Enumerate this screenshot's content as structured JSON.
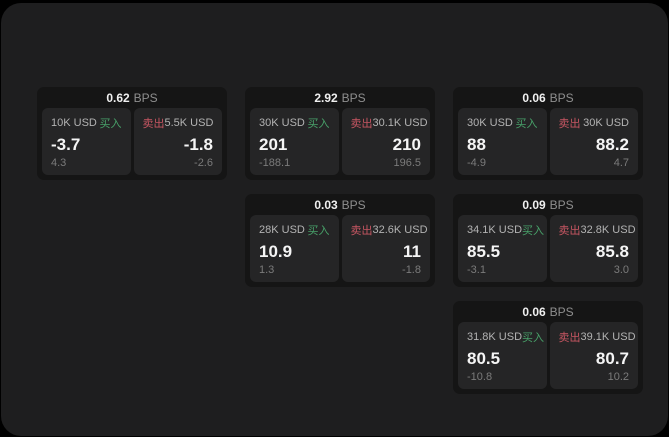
{
  "labels": {
    "bps_unit": "BPS",
    "buy": "买入",
    "sell": "卖出"
  },
  "colors": {
    "page_background": "#1e1e1f",
    "card_background": "#151515",
    "tile_background": "#252526",
    "buy_accent": "#48a169",
    "sell_accent": "#c75662"
  },
  "cards": [
    {
      "bps": "0.62",
      "col": "1",
      "row": "1",
      "buy": {
        "amount": "10K USD",
        "value": "-3.7",
        "sub": "4.3"
      },
      "sell": {
        "amount": "5.5K USD",
        "value": "-1.8",
        "sub": "-2.6"
      }
    },
    {
      "bps": "2.92",
      "col": "2",
      "row": "1",
      "buy": {
        "amount": "30K USD",
        "value": "201",
        "sub": "-188.1"
      },
      "sell": {
        "amount": "30.1K USD",
        "value": "210",
        "sub": "196.5"
      }
    },
    {
      "bps": "0.06",
      "col": "3",
      "row": "1",
      "buy": {
        "amount": "30K USD",
        "value": "88",
        "sub": "-4.9"
      },
      "sell": {
        "amount": "30K USD",
        "value": "88.2",
        "sub": "4.7"
      }
    },
    {
      "bps": "0.03",
      "col": "2",
      "row": "2",
      "buy": {
        "amount": "28K USD",
        "value": "10.9",
        "sub": "1.3"
      },
      "sell": {
        "amount": "32.6K USD",
        "value": "11",
        "sub": "-1.8"
      }
    },
    {
      "bps": "0.09",
      "col": "3",
      "row": "2",
      "buy": {
        "amount": "34.1K USD",
        "value": "85.5",
        "sub": "-3.1"
      },
      "sell": {
        "amount": "32.8K USD",
        "value": "85.8",
        "sub": "3.0"
      }
    },
    {
      "bps": "0.06",
      "col": "3",
      "row": "3",
      "buy": {
        "amount": "31.8K USD",
        "value": "80.5",
        "sub": "-10.8"
      },
      "sell": {
        "amount": "39.1K USD",
        "value": "80.7",
        "sub": "10.2"
      }
    }
  ]
}
